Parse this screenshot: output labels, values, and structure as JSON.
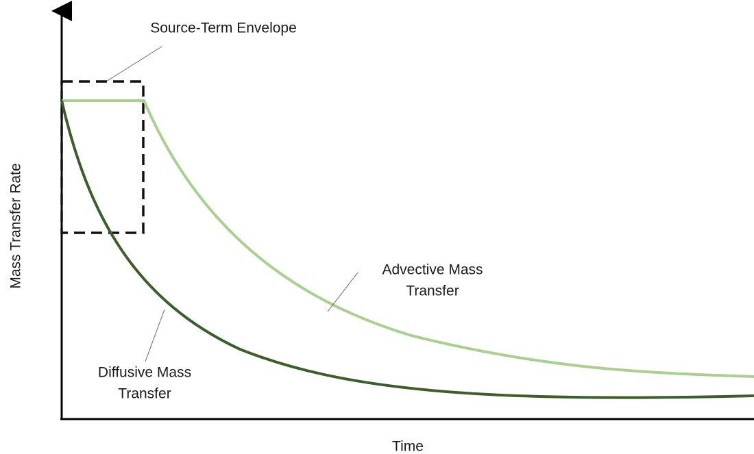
{
  "axes": {
    "x_label": "Time",
    "y_label": "Mass Transfer Rate"
  },
  "annotations": {
    "envelope": "Source-Term Envelope",
    "advective": [
      "Advective Mass",
      "Transfer"
    ],
    "diffusive": [
      "Diffusive Mass",
      "Transfer"
    ]
  }
}
